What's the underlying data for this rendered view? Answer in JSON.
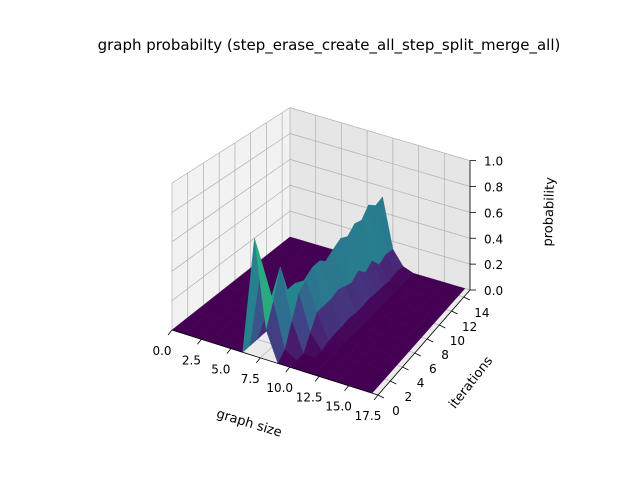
{
  "chart_data": {
    "type": "surface3d",
    "title": "graph probabilty (step_erase_create_all_step_split_merge_all)",
    "xlabel": "graph size",
    "ylabel": "iterations",
    "zlabel": "probability",
    "xlim": [
      0,
      17.5
    ],
    "ylim": [
      0,
      15
    ],
    "zlim": [
      0,
      1
    ],
    "x_ticks": [
      "0.0",
      "2.5",
      "5.0",
      "7.5",
      "10.0",
      "12.5",
      "15.0",
      "17.5"
    ],
    "y_ticks": [
      "0",
      "2",
      "4",
      "6",
      "8",
      "10",
      "12",
      "14"
    ],
    "z_ticks": [
      "0.0",
      "0.2",
      "0.4",
      "0.6",
      "0.8",
      "1.0"
    ],
    "colormap": "viridis",
    "grid": true,
    "graph_size": [
      0,
      1,
      2,
      3,
      4,
      5,
      6,
      7,
      8,
      9,
      10,
      11,
      12,
      13,
      14,
      15,
      16,
      17
    ],
    "iterations": [
      0,
      1,
      2,
      3,
      4,
      5,
      6,
      7,
      8,
      9,
      10,
      11,
      12,
      13,
      14,
      15
    ],
    "surface_description": "probability is 0 everywhere except near graph size 7-11: at iteration 0 the mass sits on size 7 (~0.8) and 8 (~0.2); from iteration 1 onward a ridge around size 8-10 with peak values around 0.3-0.5 drifting upward over iterations",
    "probability_rows": [
      [
        0,
        0,
        0,
        0,
        0,
        0,
        0,
        0.8,
        0.2,
        0,
        0,
        0,
        0,
        0,
        0,
        0,
        0,
        0
      ],
      [
        0,
        0,
        0,
        0,
        0,
        0,
        0,
        0.6,
        0.35,
        0.05,
        0,
        0,
        0,
        0,
        0,
        0,
        0,
        0
      ],
      [
        0,
        0,
        0,
        0,
        0,
        0,
        0,
        0.25,
        0.55,
        0.2,
        0,
        0,
        0,
        0,
        0,
        0,
        0,
        0
      ],
      [
        0,
        0,
        0,
        0,
        0,
        0,
        0,
        0.15,
        0.35,
        0.35,
        0.1,
        0,
        0,
        0,
        0,
        0,
        0,
        0
      ],
      [
        0,
        0,
        0,
        0,
        0,
        0,
        0,
        0.05,
        0.35,
        0.4,
        0.2,
        0.02,
        0,
        0,
        0,
        0,
        0,
        0
      ],
      [
        0,
        0,
        0,
        0,
        0,
        0,
        0,
        0.03,
        0.3,
        0.45,
        0.2,
        0.03,
        0,
        0,
        0,
        0,
        0,
        0
      ],
      [
        0,
        0,
        0,
        0,
        0,
        0,
        0,
        0.02,
        0.3,
        0.45,
        0.2,
        0.03,
        0,
        0,
        0,
        0,
        0,
        0
      ],
      [
        0,
        0,
        0,
        0,
        0,
        0,
        0,
        0.02,
        0.32,
        0.4,
        0.22,
        0.04,
        0,
        0,
        0,
        0,
        0,
        0
      ],
      [
        0,
        0,
        0,
        0,
        0,
        0,
        0,
        0.02,
        0.3,
        0.45,
        0.2,
        0.03,
        0,
        0,
        0,
        0,
        0,
        0
      ],
      [
        0,
        0,
        0,
        0,
        0,
        0,
        0,
        0.01,
        0.3,
        0.48,
        0.18,
        0.03,
        0,
        0,
        0,
        0,
        0,
        0
      ],
      [
        0,
        0,
        0,
        0,
        0,
        0,
        0,
        0.01,
        0.28,
        0.45,
        0.22,
        0.04,
        0,
        0,
        0,
        0,
        0,
        0
      ],
      [
        0,
        0,
        0,
        0,
        0,
        0,
        0,
        0.01,
        0.3,
        0.5,
        0.16,
        0.03,
        0,
        0,
        0,
        0,
        0,
        0
      ],
      [
        0,
        0,
        0,
        0,
        0,
        0,
        0,
        0.01,
        0.28,
        0.48,
        0.2,
        0.03,
        0,
        0,
        0,
        0,
        0,
        0
      ],
      [
        0,
        0,
        0,
        0,
        0,
        0,
        0,
        0.01,
        0.3,
        0.55,
        0.12,
        0.02,
        0,
        0,
        0,
        0,
        0,
        0
      ],
      [
        0,
        0,
        0,
        0,
        0,
        0,
        0,
        0.01,
        0.3,
        0.5,
        0.15,
        0.04,
        0,
        0,
        0,
        0,
        0,
        0
      ],
      [
        0,
        0,
        0,
        0,
        0,
        0,
        0,
        0.01,
        0.3,
        0.52,
        0.14,
        0.03,
        0,
        0,
        0,
        0,
        0,
        0
      ]
    ]
  },
  "colors": {
    "pane_left": "#f2f2f2",
    "pane_right": "#e6e6e6",
    "pane_floor": "#ebebeb",
    "grid": "#b0b0b0",
    "edge": "#000000"
  }
}
